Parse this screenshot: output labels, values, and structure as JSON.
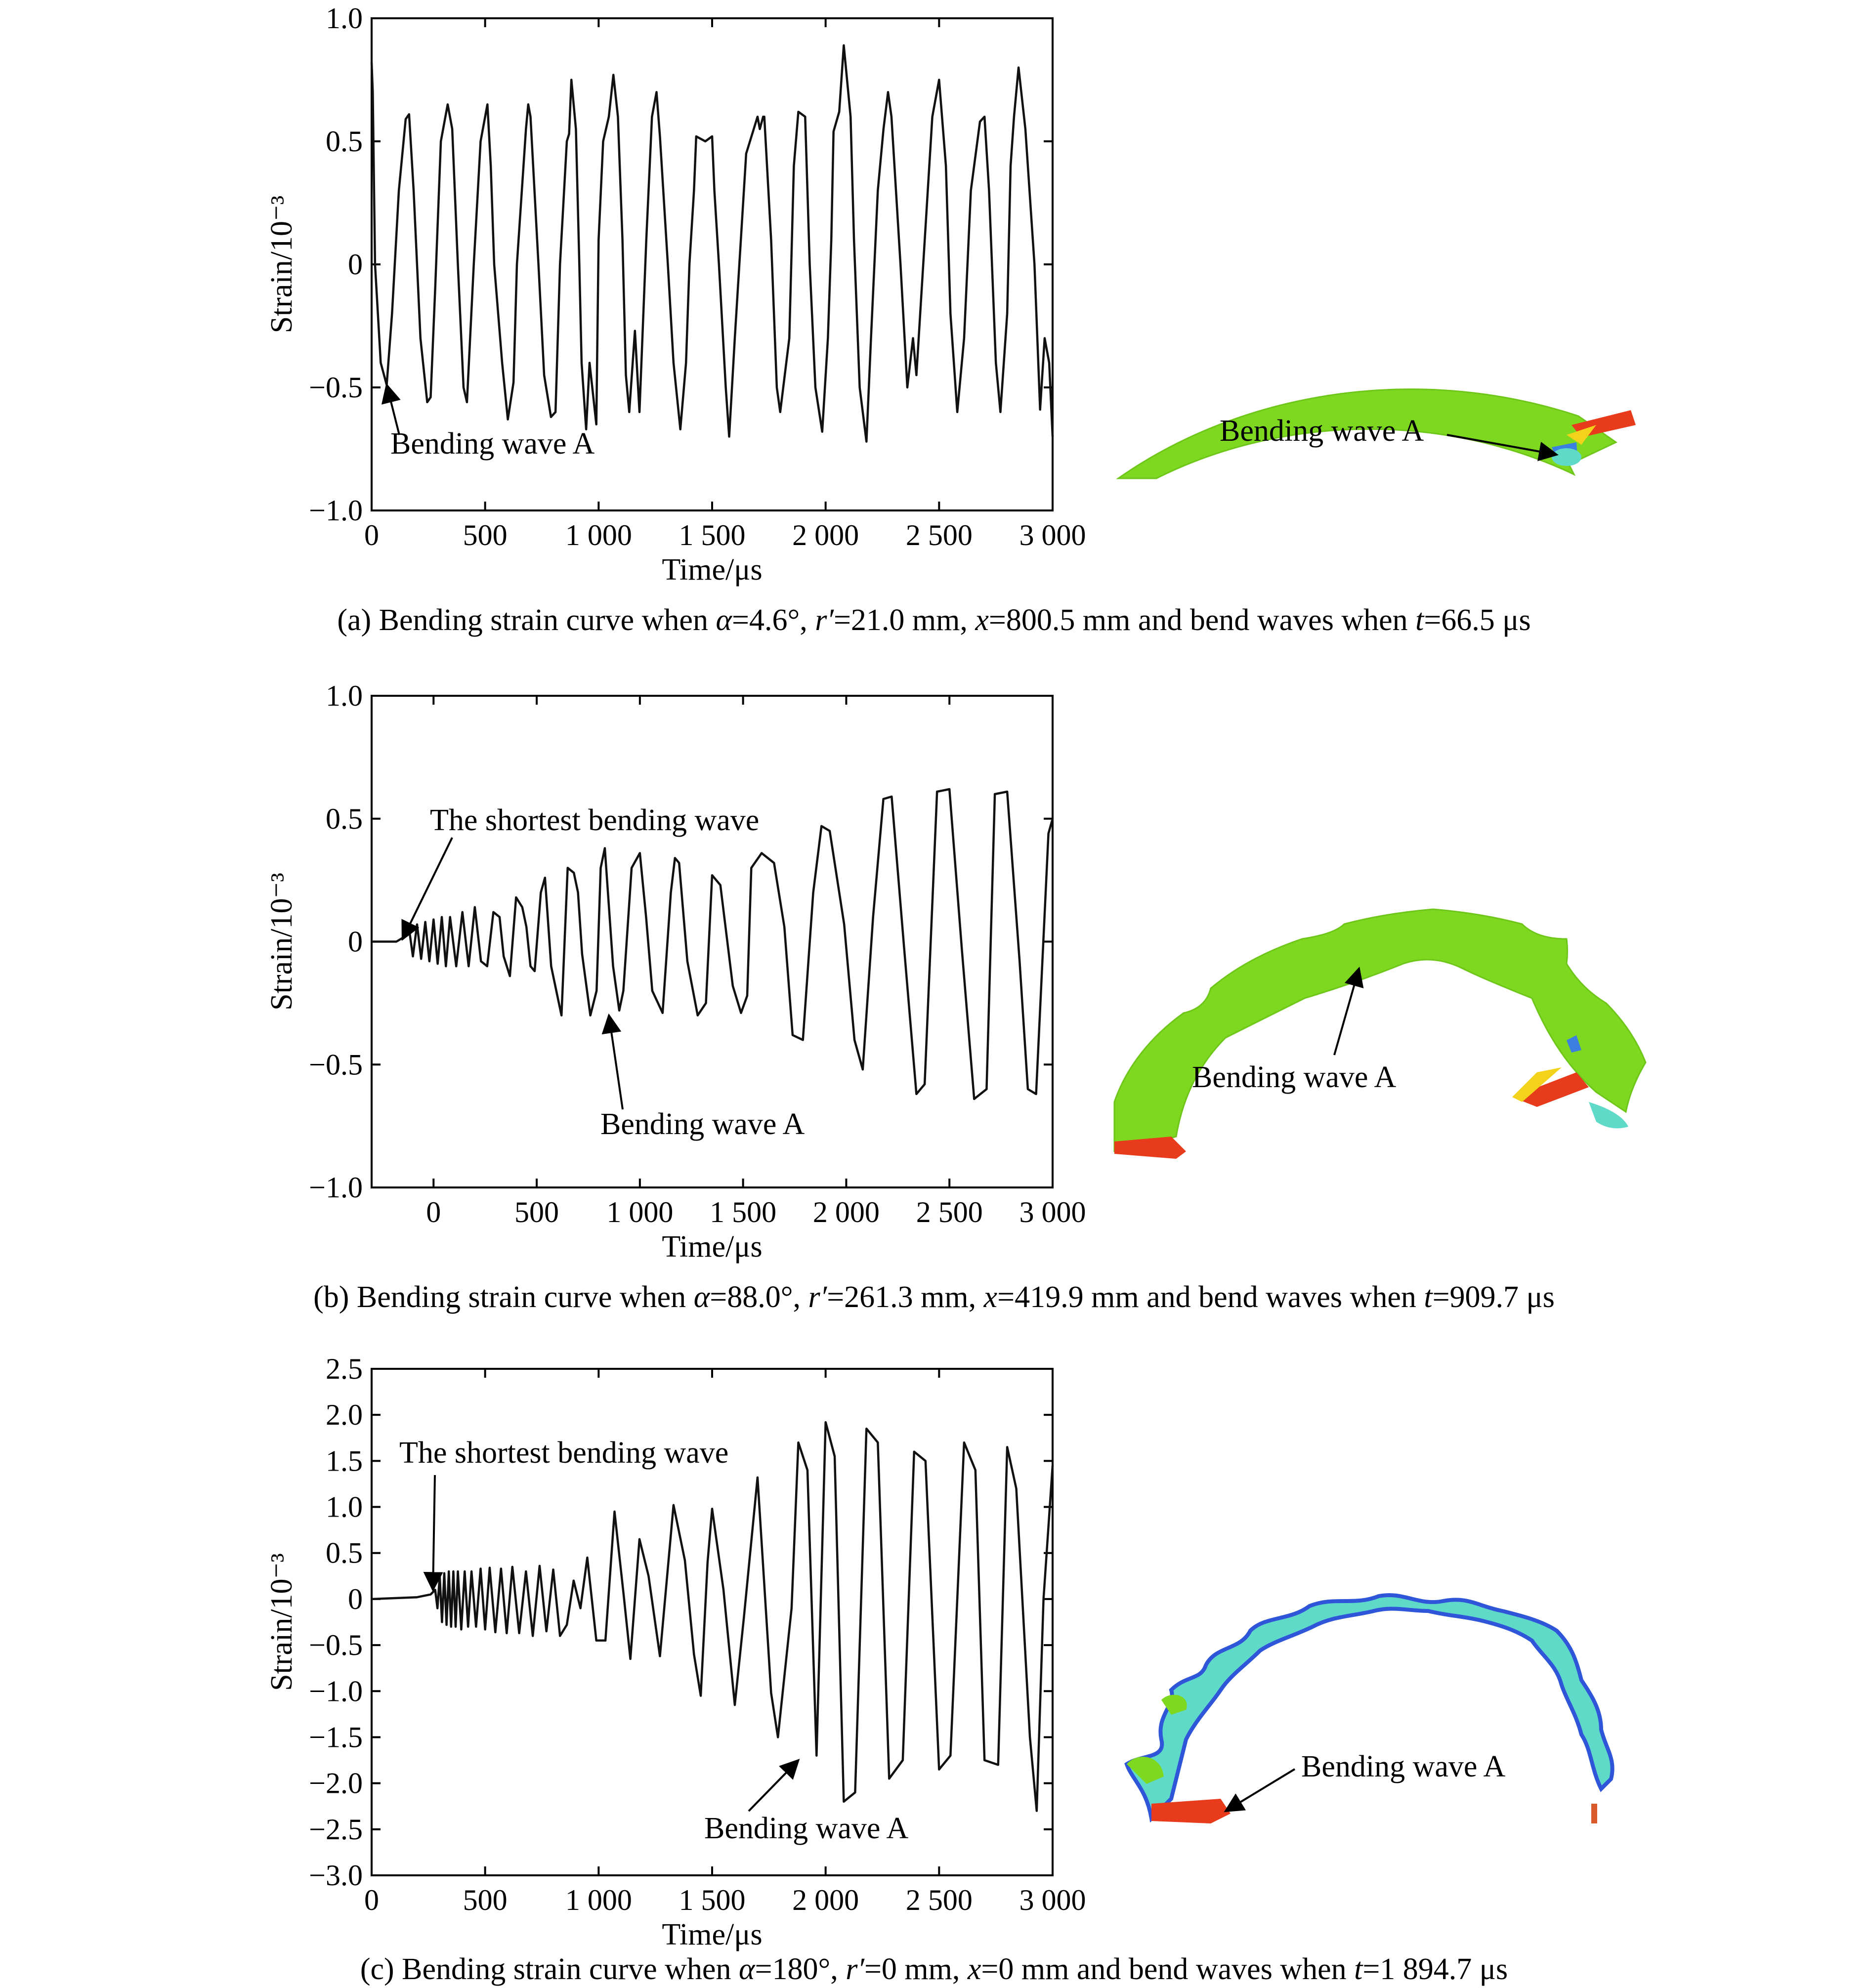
{
  "panels": [
    {
      "id": "a",
      "caption_parts": [
        "(a) Bending strain curve when ",
        "α",
        "=4.6°, ",
        "r′",
        "=21.0 mm, ",
        "x",
        "=800.5 mm and bend waves when ",
        "t",
        "=66.5 μs"
      ],
      "contour_label": "Bending wave A",
      "contour_colors": [
        "#7dd81f",
        "#e83b1c",
        "#f2d21b",
        "#3b7fe0"
      ]
    },
    {
      "id": "b",
      "caption_parts": [
        "(b) Bending strain curve when ",
        "α",
        "=88.0°, ",
        "r′",
        "=261.3 mm, ",
        "x",
        "=419.9 mm and bend waves when ",
        "t",
        "=909.7 μs"
      ],
      "contour_label": "Bending wave A",
      "contour_colors": [
        "#7dd81f",
        "#e83b1c",
        "#f2d21b",
        "#3b7fe0"
      ]
    },
    {
      "id": "c",
      "caption_parts": [
        "(c) Bending strain curve when ",
        "α",
        "=180°, ",
        "r′",
        "=0 mm, ",
        "x",
        "=0 mm and bend waves when ",
        "t",
        "=1 894.7 μs"
      ],
      "contour_label": "Bending wave A",
      "contour_colors": [
        "#2f56d8",
        "#5fd9c8",
        "#7dd81f",
        "#e83b1c"
      ]
    }
  ],
  "chart_data": [
    {
      "type": "line",
      "xlabel": "Time/μs",
      "ylabel": "Strain/10⁻³",
      "xlim": [
        0,
        3000
      ],
      "ylim": [
        -1.0,
        1.0
      ],
      "xticks": [
        0,
        500,
        1000,
        1500,
        2000,
        2500,
        3000
      ],
      "xtick_labels": [
        "0",
        "500",
        "1 000",
        "1 500",
        "2 000",
        "2 500",
        "3 000"
      ],
      "yticks": [
        1.0,
        0.5,
        0,
        -0.5,
        -1.0
      ],
      "ytick_labels": [
        "1.0",
        "0.5",
        "0",
        "−0.5",
        "−1.0"
      ],
      "grid": false,
      "annotations": [
        {
          "text": "Bending wave A",
          "x": 85,
          "y": -0.52
        }
      ],
      "series": [
        {
          "x": [
            0,
            5,
            15,
            40,
            66.5,
            90,
            120,
            150,
            165,
            185,
            215,
            245,
            260,
            280,
            305,
            335,
            355,
            380,
            405,
            420,
            450,
            480,
            510,
            525,
            540,
            575,
            600,
            625,
            640,
            680,
            690,
            700,
            735,
            760,
            790,
            810,
            830,
            860,
            870,
            880,
            900,
            915,
            925,
            945,
            960,
            990,
            1000,
            1020,
            1045,
            1065,
            1085,
            1105,
            1120,
            1135,
            1160,
            1180,
            1210,
            1235,
            1255,
            1270,
            1305,
            1330,
            1360,
            1385,
            1400,
            1420,
            1430,
            1470,
            1500,
            1510,
            1530,
            1560,
            1575,
            1600,
            1620,
            1650,
            1700,
            1710,
            1725,
            1730,
            1760,
            1785,
            1800,
            1840,
            1860,
            1880,
            1910,
            1930,
            1955,
            1985,
            2010,
            2025,
            2035,
            2060,
            2080,
            2110,
            2125,
            2150,
            2180,
            2200,
            2230,
            2255,
            2275,
            2290,
            2330,
            2360,
            2385,
            2400,
            2450,
            2470,
            2500,
            2530,
            2550,
            2580,
            2610,
            2640,
            2680,
            2700,
            2720,
            2750,
            2770,
            2800,
            2815,
            2830,
            2850,
            2880,
            2920,
            2945,
            2965,
            2985,
            3000
          ],
          "y": [
            0.82,
            0.7,
            0,
            -0.4,
            -0.49,
            -0.2,
            0.3,
            0.59,
            0.61,
            0.3,
            -0.3,
            -0.56,
            -0.54,
            -0.1,
            0.5,
            0.65,
            0.55,
            0,
            -0.5,
            -0.56,
            0,
            0.5,
            0.65,
            0.4,
            0,
            -0.4,
            -0.63,
            -0.48,
            0,
            0.55,
            0.65,
            0.6,
            0,
            -0.45,
            -0.62,
            -0.6,
            0,
            0.5,
            0.53,
            0.75,
            0.55,
            0,
            -0.4,
            -0.67,
            -0.4,
            -0.65,
            0.1,
            0.5,
            0.6,
            0.77,
            0.6,
            0.1,
            -0.45,
            -0.6,
            -0.27,
            -0.6,
            0.1,
            0.6,
            0.7,
            0.52,
            0,
            -0.4,
            -0.67,
            -0.4,
            0,
            0.3,
            0.52,
            0.5,
            0.52,
            0.3,
            0,
            -0.5,
            -0.7,
            -0.3,
            0,
            0.45,
            0.6,
            0.55,
            0.6,
            0.6,
            0.1,
            -0.5,
            -0.6,
            -0.3,
            0.4,
            0.62,
            0.6,
            0,
            -0.5,
            -0.68,
            -0.3,
            0.1,
            0.54,
            0.62,
            0.89,
            0.6,
            0.1,
            -0.5,
            -0.72,
            -0.3,
            0.3,
            0.55,
            0.7,
            0.6,
            0,
            -0.5,
            -0.3,
            -0.45,
            0.3,
            0.6,
            0.75,
            0.4,
            -0.2,
            -0.6,
            -0.3,
            0.3,
            0.58,
            0.6,
            0.3,
            -0.4,
            -0.6,
            -0.2,
            0.4,
            0.6,
            0.8,
            0.55,
            0,
            -0.59,
            -0.3,
            -0.4,
            -0.7
          ]
        }
      ]
    },
    {
      "type": "line",
      "xlabel": "Time/μs",
      "ylabel": "Strain/10⁻³",
      "xlim": [
        -300,
        3000
      ],
      "ylim": [
        -1.0,
        1.0
      ],
      "xticks": [
        0,
        500,
        1000,
        1500,
        2000,
        2500,
        3000
      ],
      "xtick_labels": [
        "0",
        "500",
        "1 000",
        "1 500",
        "2 000",
        "2 500",
        "3 000"
      ],
      "yticks": [
        1.0,
        0.5,
        0,
        -0.5,
        -1.0
      ],
      "ytick_labels": [
        "1.0",
        "0.5",
        "0",
        "−0.5",
        "−1.0"
      ],
      "grid": false,
      "annotations": [
        {
          "text": "The shortest bending wave",
          "x": -150,
          "y": 0
        },
        {
          "text": "Bending wave A",
          "x": 850,
          "y": -0.3
        }
      ],
      "series": [
        {
          "x": [
            -300,
            -180,
            -140,
            -120,
            -100,
            -80,
            -60,
            -40,
            -20,
            0,
            20,
            40,
            60,
            80,
            110,
            140,
            170,
            200,
            230,
            260,
            290,
            320,
            340,
            370,
            400,
            430,
            450,
            470,
            490,
            520,
            540,
            570,
            600,
            620,
            650,
            680,
            700,
            720,
            760,
            790,
            810,
            830,
            870,
            900,
            920,
            960,
            1000,
            1030,
            1060,
            1110,
            1150,
            1170,
            1190,
            1230,
            1280,
            1320,
            1350,
            1390,
            1450,
            1490,
            1520,
            1540,
            1590,
            1650,
            1700,
            1740,
            1790,
            1840,
            1880,
            1920,
            1990,
            2040,
            2080,
            2130,
            2180,
            2220,
            2280,
            2340,
            2380,
            2440,
            2500,
            2560,
            2620,
            2680,
            2720,
            2780,
            2840,
            2880,
            2920,
            2980,
            3000
          ],
          "y": [
            0,
            0,
            0.02,
            0.06,
            -0.06,
            0.07,
            -0.07,
            0.08,
            -0.08,
            0.09,
            -0.09,
            0.1,
            -0.1,
            0.1,
            -0.1,
            0.12,
            -0.1,
            0.14,
            -0.08,
            -0.1,
            0.12,
            0.1,
            -0.06,
            -0.14,
            0.18,
            0.14,
            0.06,
            -0.1,
            -0.12,
            0.2,
            0.26,
            -0.1,
            -0.22,
            -0.3,
            0.3,
            0.28,
            0.2,
            -0.05,
            -0.3,
            -0.2,
            0.3,
            0.38,
            -0.1,
            -0.28,
            -0.2,
            0.3,
            0.36,
            0.1,
            -0.2,
            -0.29,
            0.2,
            0.34,
            0.32,
            -0.08,
            -0.3,
            -0.25,
            0.27,
            0.23,
            -0.18,
            -0.29,
            -0.22,
            0.3,
            0.36,
            0.32,
            0.06,
            -0.38,
            -0.4,
            0.2,
            0.47,
            0.45,
            0.07,
            -0.4,
            -0.52,
            0.1,
            0.58,
            0.59,
            -0.02,
            -0.62,
            -0.58,
            0.61,
            0.62,
            -0.03,
            -0.64,
            -0.6,
            0.6,
            0.61,
            -0.08,
            -0.6,
            -0.62,
            0.44,
            0.5
          ]
        }
      ]
    },
    {
      "type": "line",
      "xlabel": "Time/μs",
      "ylabel": "Strain/10⁻³",
      "xlim": [
        0,
        3000
      ],
      "ylim": [
        -3.0,
        2.5
      ],
      "xticks": [
        0,
        500,
        1000,
        1500,
        2000,
        2500,
        3000
      ],
      "xtick_labels": [
        "0",
        "500",
        "1 000",
        "1 500",
        "2 000",
        "2 500",
        "3 000"
      ],
      "yticks": [
        2.5,
        2.0,
        1.5,
        1.0,
        0.5,
        0,
        -0.5,
        -1.0,
        -1.5,
        -2.0,
        -2.5,
        -3.0
      ],
      "ytick_labels": [
        "2.5",
        "2.0",
        "1.5",
        "1.0",
        "0.5",
        "0",
        "−0.5",
        "−1.0",
        "−1.5",
        "−2.0",
        "−2.5",
        "−3.0"
      ],
      "grid": false,
      "annotations": [
        {
          "text": "The shortest bending wave",
          "x": 270,
          "y": 0.15
        },
        {
          "text": "Bending wave A",
          "x": 1880,
          "y": -1.8
        }
      ],
      "series": [
        {
          "x": [
            0,
            200,
            260,
            280,
            290,
            300,
            310,
            320,
            330,
            340,
            350,
            360,
            370,
            380,
            395,
            410,
            425,
            440,
            460,
            480,
            500,
            520,
            545,
            570,
            595,
            620,
            650,
            680,
            710,
            740,
            770,
            800,
            830,
            860,
            890,
            920,
            950,
            990,
            1030,
            1070,
            1110,
            1140,
            1180,
            1220,
            1270,
            1330,
            1380,
            1420,
            1450,
            1480,
            1500,
            1550,
            1600,
            1640,
            1700,
            1760,
            1790,
            1850,
            1880,
            1920,
            1960,
            2000,
            2040,
            2080,
            2130,
            2180,
            2230,
            2280,
            2340,
            2390,
            2440,
            2500,
            2550,
            2610,
            2660,
            2700,
            2760,
            2800,
            2840,
            2900,
            2930,
            2960,
            3000
          ],
          "y": [
            0,
            0.02,
            0.05,
            0.1,
            -0.1,
            0.25,
            -0.25,
            0.28,
            -0.28,
            0.3,
            -0.3,
            0.3,
            -0.3,
            0.3,
            -0.33,
            0.3,
            -0.3,
            0.3,
            -0.3,
            0.33,
            -0.33,
            0.34,
            -0.36,
            0.33,
            -0.37,
            0.35,
            -0.37,
            0.3,
            -0.4,
            0.36,
            -0.35,
            0.32,
            -0.4,
            -0.28,
            0.2,
            -0.1,
            0.45,
            -0.45,
            -0.45,
            0.95,
            0.05,
            -0.65,
            0.65,
            0.25,
            -0.62,
            1.02,
            0.42,
            -0.6,
            -1.05,
            0.4,
            0.98,
            0.1,
            -1.15,
            -0.2,
            1.32,
            -1.02,
            -1.5,
            -0.1,
            1.7,
            1.4,
            -1.7,
            1.92,
            1.55,
            -2.2,
            -2.1,
            1.85,
            1.7,
            -1.95,
            -1.75,
            1.6,
            1.5,
            -1.85,
            -1.7,
            1.7,
            1.4,
            -1.75,
            -1.8,
            1.65,
            1.2,
            -1.5,
            -2.3,
            0,
            1.45
          ]
        }
      ]
    }
  ]
}
